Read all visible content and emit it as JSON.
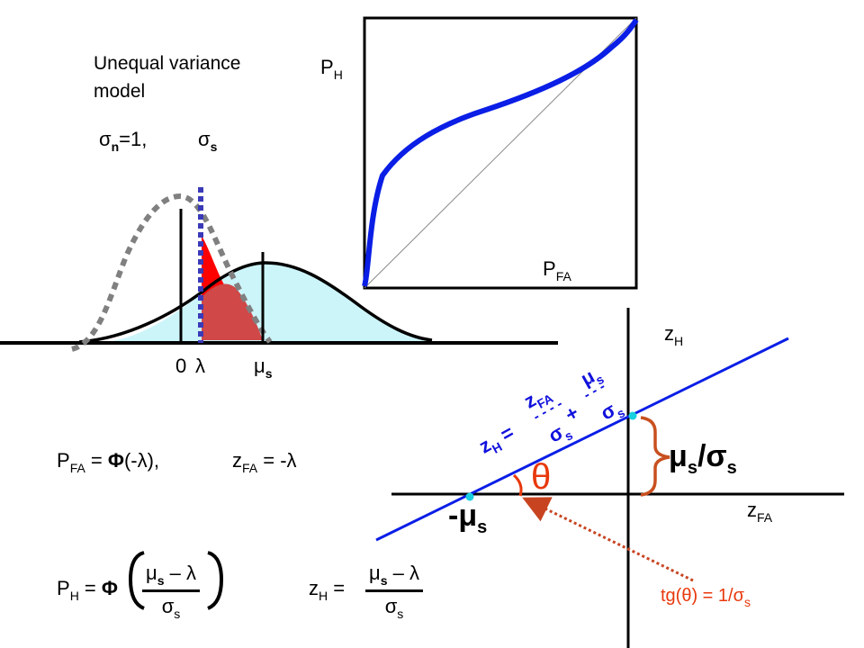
{
  "title_line1": "Unequal variance",
  "title_line2": "model",
  "sigma_n_label": "σ",
  "sigma_n_sub": "n",
  "sigma_n_eq": "=1,",
  "sigma_s_label": "σ",
  "sigma_s_sub": "s",
  "axis_zero": "0",
  "axis_lambda": "λ",
  "axis_mu": "μ",
  "axis_mu_sub": "s",
  "roc": {
    "ylabel": "P",
    "ylabel_sub": "H",
    "xlabel": "P",
    "xlabel_sub": "FA"
  },
  "zplot": {
    "ylabel": "z",
    "ylabel_sub": "H",
    "xlabel": "z",
    "xlabel_sub": "FA",
    "intercept_label": "μ",
    "intercept_sub": "s",
    "intercept_sep": "/σ",
    "intercept_sub2": "s",
    "x_intercept_label": "-μ",
    "x_intercept_sub": "s",
    "theta": "θ",
    "slope_note": "tg(θ) = 1/σ",
    "slope_note_sub": "s"
  },
  "line_eq": {
    "lhs": "z",
    "lhs_sub": "H",
    "eq": "=",
    "frac1_num": "z",
    "frac1_num_sub": "FA",
    "frac1_den": "σ",
    "frac1_den_sub": "s",
    "plus": "+",
    "frac2_num": "μ",
    "frac2_num_sub": "s",
    "frac2_den": "σ",
    "frac2_den_sub": "s"
  },
  "formula_pfa": {
    "lhs": "P",
    "lhs_sub": "FA",
    "mid": " = ",
    "phi": "Φ",
    "arg": "(-λ),"
  },
  "formula_zfa": {
    "lhs": "z",
    "lhs_sub": "FA",
    "rhs": " = -λ"
  },
  "formula_ph": {
    "lhs": "P",
    "lhs_sub": "H",
    "mid": " = ",
    "phi": "Φ",
    "num": "μ",
    "num_sub": "s",
    "num_rest": " – λ",
    "den": "σ",
    "den_sub": "s"
  },
  "formula_zh": {
    "lhs": "z",
    "lhs_sub": "H",
    "mid": " =",
    "num": "μ",
    "num_sub": "s",
    "num_rest": " – λ",
    "den": "σ",
    "den_sub": "s"
  },
  "colors": {
    "curve_blue": "#0a1ee6",
    "hit_red": "#ff0000",
    "fa_red": "#d04848",
    "signal_fill": "#ccf5fa",
    "noise_dash": "#808080",
    "criterion_dash": "#3a3ab8",
    "annotation": "#e8380c",
    "cyan_dot": "#18d0e0",
    "brace": "#c85020"
  }
}
